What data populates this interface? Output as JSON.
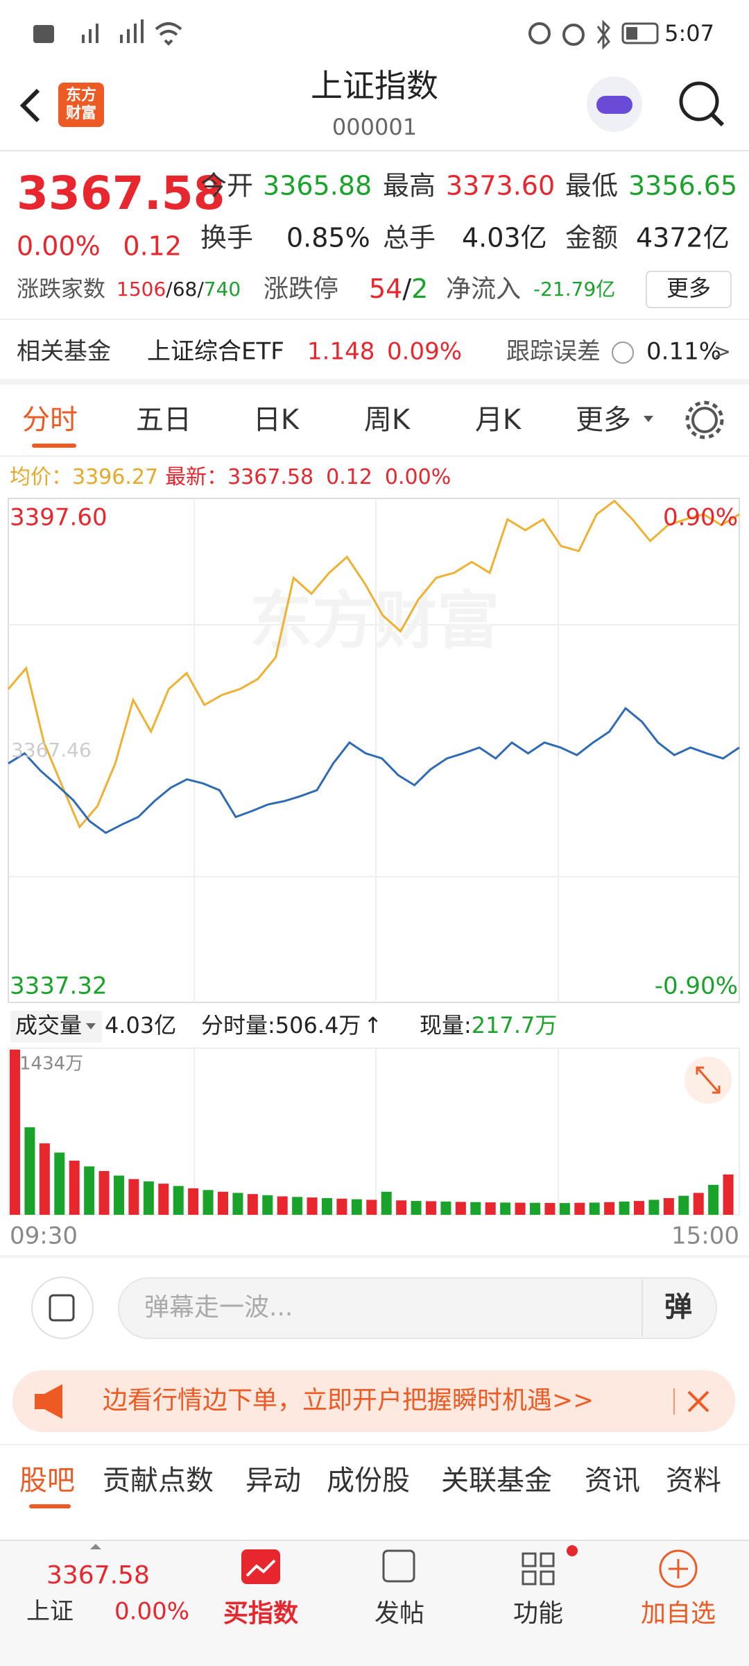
{
  "status_bar": {
    "time": "5:07"
  },
  "header": {
    "title": "上证指数",
    "code": "000001",
    "logo": [
      "东方",
      "财富"
    ]
  },
  "quote": {
    "price": "3367.58",
    "change_pct": "0.00%",
    "change": "0.12",
    "stats": [
      {
        "label": "今开",
        "value": "3365.88"
      },
      {
        "label": "最高",
        "value": "3373.60"
      },
      {
        "label": "最低",
        "value": "3356.65"
      },
      {
        "label": "换手",
        "value": "0.85%"
      },
      {
        "label": "总手",
        "value": "4.03亿"
      },
      {
        "label": "金额",
        "value": "4372亿"
      }
    ],
    "breadth": {
      "label": "涨跌家数",
      "up": "1506",
      "sep": "/",
      "flat": "68",
      "down": "740"
    },
    "limit": {
      "label": "涨跌停",
      "up": "54",
      "sep": "/",
      "down": "2"
    },
    "net_inflow": {
      "label": "净流入",
      "value": "-21.79亿"
    },
    "more": "更多"
  },
  "fund": {
    "label": "相关基金",
    "name": "上证综合ETF",
    "price": "1.148",
    "pct": "0.09%",
    "tracking_label": "跟踪误差",
    "tracking": "0.11%",
    "arrow": ">"
  },
  "tabs": [
    "分时",
    "五日",
    "日K",
    "周K",
    "月K",
    "更多"
  ],
  "intraday": {
    "avg_label": "均价：",
    "avg": "3396.27",
    "latest_label": "最新：",
    "latest": "3367.58",
    "change": "0.12",
    "change_pct": "0.00%",
    "watermark": "东方财富",
    "mid_label": "3367.46",
    "ylim": [
      {
        "value": 3337.32,
        "label": "3337.32"
      },
      {
        "value": 3397.6,
        "label": "3397.60"
      }
    ],
    "pct_labels": [
      "-0.90%",
      "0.90%"
    ],
    "price": [
      3365.9,
      3367.1,
      3365.0,
      3363.3,
      3361.5,
      3359.0,
      3357.6,
      3358.6,
      3359.5,
      3361.4,
      3363.0,
      3364.0,
      3363.5,
      3362.7,
      3359.5,
      3360.2,
      3361.0,
      3361.4,
      3362.0,
      3362.7,
      3365.9,
      3368.4,
      3367.1,
      3366.5,
      3364.5,
      3363.3,
      3365.2,
      3366.5,
      3367.1,
      3367.8,
      3366.5,
      3368.4,
      3367.1,
      3368.4,
      3367.8,
      3366.9,
      3368.4,
      3369.7,
      3372.5,
      3370.9,
      3368.4,
      3366.9,
      3367.8,
      3367.1,
      3366.5,
      3367.8
    ],
    "lead": [
      3374.8,
      3377.3,
      3368.4,
      3363.3,
      3358.3,
      3360.8,
      3365.9,
      3373.5,
      3369.7,
      3374.8,
      3376.7,
      3372.9,
      3374.1,
      3374.8,
      3376.0,
      3378.6,
      3388.1,
      3386.2,
      3388.7,
      3390.6,
      3387.4,
      3383.6,
      3381.7,
      3385.5,
      3388.1,
      3388.7,
      3390.0,
      3388.7,
      3395.1,
      3393.8,
      3395.1,
      3391.9,
      3391.3,
      3395.7,
      3397.3,
      3395.1,
      3392.5,
      3394.4,
      3395.1,
      3395.7,
      3394.4,
      3395.7
    ]
  },
  "volume": {
    "label": "成交量",
    "total": "4.03亿",
    "minute_label": "分时量:",
    "minute": "506.4万",
    "arrow": "↑",
    "current_label": "现量:",
    "current": "217.7万",
    "max_label": "1434万",
    "ylim": [
      0,
      1434
    ],
    "values": [
      1434,
      760,
      620,
      540,
      470,
      420,
      380,
      340,
      310,
      290,
      270,
      250,
      230,
      215,
      200,
      190,
      180,
      170,
      160,
      155,
      150,
      145,
      140,
      135,
      130,
      200,
      125,
      120,
      118,
      115,
      112,
      110,
      108,
      106,
      105,
      104,
      103,
      102,
      104,
      106,
      110,
      115,
      120,
      130,
      145,
      165,
      190,
      260,
      350
    ],
    "times": [
      "09:30",
      "15:00"
    ]
  },
  "comment": {
    "placeholder": "弹幕走一波...",
    "button": "弹"
  },
  "banner": {
    "text": "边看行情边下单，立即开户把握瞬时机遇>>"
  },
  "sub_tabs": [
    "股吧",
    "贡献点数",
    "异动",
    "成份股",
    "关联基金",
    "资讯",
    "资料"
  ],
  "bottom_nav": {
    "price": "3367.58",
    "name": "上证",
    "pct": "0.00%",
    "items": [
      "买指数",
      "发帖",
      "功能",
      "加自选"
    ]
  }
}
